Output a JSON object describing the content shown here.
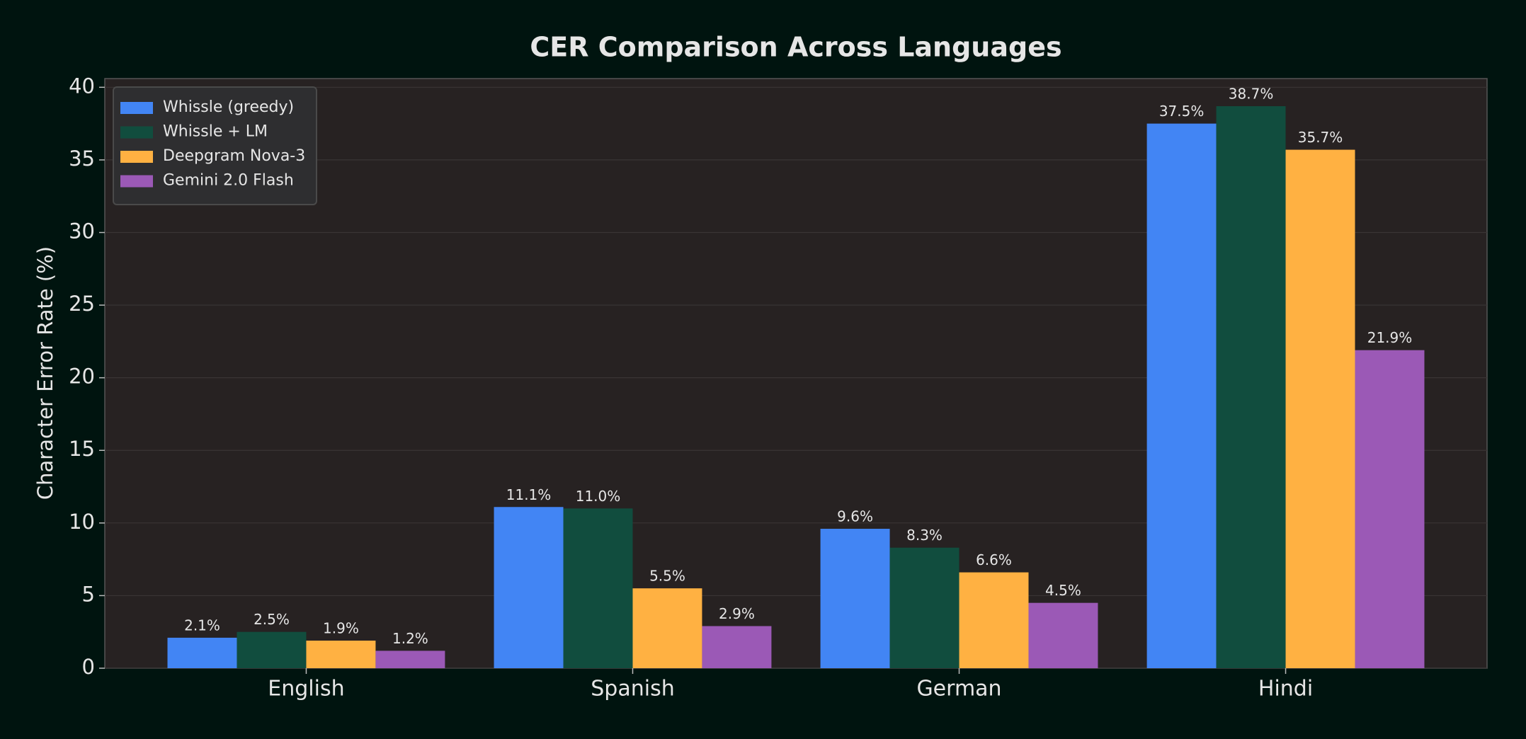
{
  "chart_data": {
    "type": "bar",
    "title": "CER Comparison Across Languages",
    "y_label": "Character Error Rate (%)",
    "categories": [
      "English",
      "Spanish",
      "German",
      "Hindi"
    ],
    "series": [
      {
        "name": "Whissle (greedy)",
        "color": "#4285f4",
        "values": [
          2.1,
          11.1,
          9.6,
          37.5
        ],
        "value_labels": [
          "2.1%",
          "11.1%",
          "9.6%",
          "37.5%"
        ]
      },
      {
        "name": "Whissle + LM",
        "color": "#114d3e",
        "values": [
          2.5,
          11.0,
          8.3,
          38.7
        ],
        "value_labels": [
          "2.5%",
          "11.0%",
          "8.3%",
          "38.7%"
        ]
      },
      {
        "name": "Deepgram Nova-3",
        "color": "#ffb142",
        "values": [
          1.9,
          5.5,
          6.6,
          35.7
        ],
        "value_labels": [
          "1.9%",
          "5.5%",
          "6.6%",
          "35.7%"
        ]
      },
      {
        "name": "Gemini 2.0 Flash",
        "color": "#9b59b6",
        "values": [
          1.2,
          2.9,
          4.5,
          21.9
        ],
        "value_labels": [
          "1.2%",
          "2.9%",
          "4.5%",
          "21.9%"
        ]
      }
    ],
    "ylim": [
      0,
      40.6
    ],
    "yticks": [
      0,
      5,
      10,
      15,
      20,
      25,
      30,
      35,
      40
    ],
    "grid": true,
    "legend": "upper left"
  }
}
